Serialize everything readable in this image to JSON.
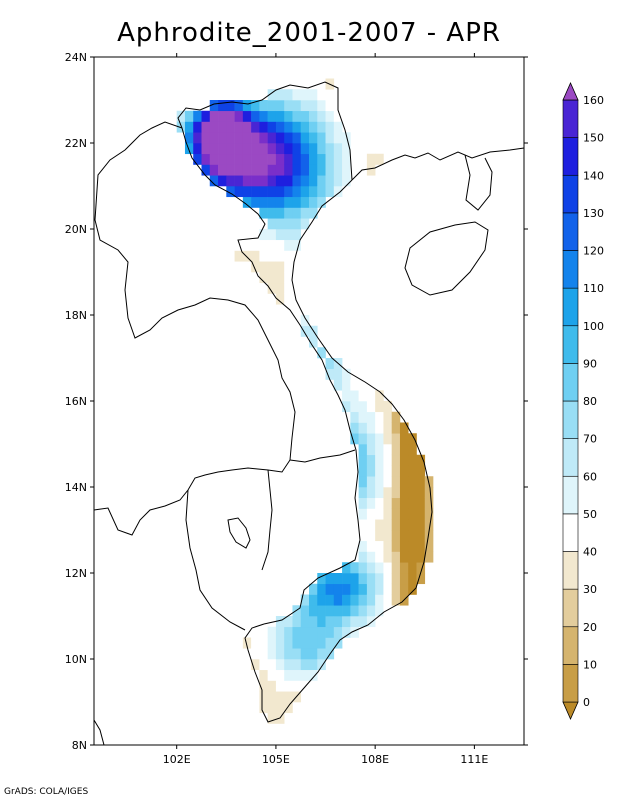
{
  "title": "Aphrodite_2001-2007 - APR",
  "credit": "GrADS: COLA/IGES",
  "lat_labels": [
    "24N",
    "22N",
    "20N",
    "18N",
    "16N",
    "14N",
    "12N",
    "10N",
    "8N"
  ],
  "lon_labels": [
    "102E",
    "105E",
    "108E",
    "111E"
  ],
  "colorbar": {
    "labels": [
      "0",
      "10",
      "20",
      "30",
      "40",
      "50",
      "60",
      "70",
      "80",
      "90",
      "100",
      "110",
      "120",
      "130",
      "140",
      "150",
      "160"
    ],
    "colors": [
      "#bb8a28",
      "#c89e47",
      "#d5b46e",
      "#e3cd9d",
      "#f2e8cf",
      "#ffffff",
      "#dff5fb",
      "#bfeaf8",
      "#99def5",
      "#6fcff2",
      "#3fbbec",
      "#1da3ea",
      "#1383ec",
      "#1262ea",
      "#0f42e6",
      "#1e1fdf",
      "#4925d4",
      "#7a2fc9",
      "#9b49c3"
    ]
  },
  "map": {
    "extent": {
      "lon_min": 99.5,
      "lon_max": 112.5,
      "lat_min": 8,
      "lat_max": 24
    },
    "variable": "precipitation",
    "shown": "April mean precipitation 2001-2007 over Vietnam, shaded by colorbar"
  }
}
